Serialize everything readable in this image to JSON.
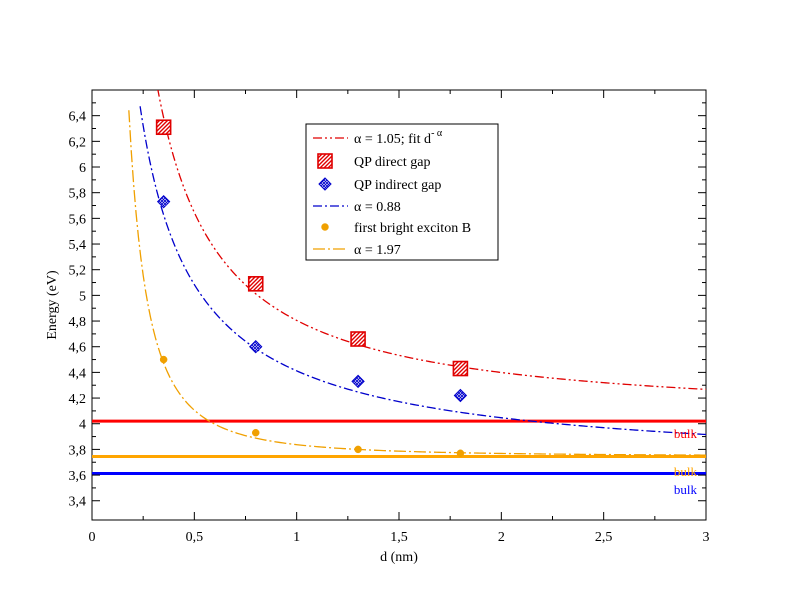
{
  "chart_data": {
    "type": "line",
    "title": "",
    "xlabel": "d (nm)",
    "ylabel": "Energy  (eV)",
    "xlim": [
      0,
      3
    ],
    "ylim": [
      3.25,
      6.6
    ],
    "x_ticks": [
      0,
      0.5,
      1,
      1.5,
      2,
      2.5,
      3
    ],
    "x_tick_labels": [
      "0",
      "0,5",
      "1",
      "1,5",
      "2",
      "2,5",
      "3"
    ],
    "y_ticks": [
      3.4,
      3.6,
      3.8,
      4.0,
      4.2,
      4.4,
      4.6,
      4.8,
      5.0,
      5.2,
      5.4,
      5.6,
      5.8,
      6.0,
      6.2,
      6.4
    ],
    "y_tick_labels": [
      "3,4",
      "3,6",
      "3,8",
      "4",
      "4,2",
      "4,4",
      "4,6",
      "4,8",
      "5",
      "5,2",
      "5,4",
      "5,6",
      "5,8",
      "6",
      "6,2",
      "6,4"
    ],
    "grid": false,
    "legend_position": "top-center",
    "series": [
      {
        "name": "QP direct gap",
        "kind": "scatter",
        "marker": "hatched-square",
        "color": "#e00000",
        "x": [
          0.35,
          0.8,
          1.3,
          1.8
        ],
        "y": [
          6.31,
          5.09,
          4.66,
          4.43
        ]
      },
      {
        "name": "α = 1.05;  fit d^-α",
        "kind": "fit",
        "style": "dash-dot-dot",
        "color": "#e00000",
        "alpha": 1.05,
        "bulk": 4.02,
        "coef": 0.785,
        "x_min": 0.32
      },
      {
        "name": "QP indirect gap",
        "kind": "scatter",
        "marker": "hatched-diamond",
        "color": "#0000cc",
        "x": [
          0.35,
          0.8,
          1.3,
          1.8
        ],
        "y": [
          5.73,
          4.6,
          4.33,
          4.22
        ]
      },
      {
        "name": "α = 0.88",
        "kind": "fit",
        "style": "dash-dot",
        "color": "#0000cc",
        "alpha": 0.88,
        "bulk": 3.612,
        "coef": 0.8,
        "x_min": 0.235
      },
      {
        "name": "first bright exciton B",
        "kind": "scatter",
        "marker": "dot",
        "color": "#f0a000",
        "x": [
          0.35,
          0.8,
          1.3,
          1.8
        ],
        "y": [
          4.5,
          3.93,
          3.8,
          3.77
        ]
      },
      {
        "name": " α = 1.97",
        "kind": "fit",
        "style": "dash-dot-long",
        "color": "#f0a000",
        "alpha": 1.97,
        "bulk": 3.745,
        "coef": 0.092,
        "x_min": 0.18
      }
    ],
    "legend_entries": [
      {
        "label": "α = 1.05;  fit d",
        "sup": "- α",
        "symbol": "line",
        "style": "dash-dot-dot",
        "color": "#e00000"
      },
      {
        "label": "QP direct gap",
        "symbol": "hatched-square",
        "color": "#e00000"
      },
      {
        "label": "QP indirect gap",
        "symbol": "hatched-diamond",
        "color": "#0000cc"
      },
      {
        "label": "α = 0.88",
        "symbol": "line",
        "style": "dash-dot",
        "color": "#0000cc"
      },
      {
        "label": "first bright exciton B",
        "symbol": "dot",
        "color": "#f0a000"
      },
      {
        "label": " α = 1.97",
        "symbol": "line",
        "style": "dash-dot-long",
        "color": "#f0a000"
      }
    ],
    "hlines": [
      {
        "y": 4.02,
        "color": "#ff0000",
        "label": "bulk"
      },
      {
        "y": 3.745,
        "color": "#ffa500",
        "label": "bulk"
      },
      {
        "y": 3.612,
        "color": "#0000ff",
        "label": "bulk"
      }
    ]
  }
}
